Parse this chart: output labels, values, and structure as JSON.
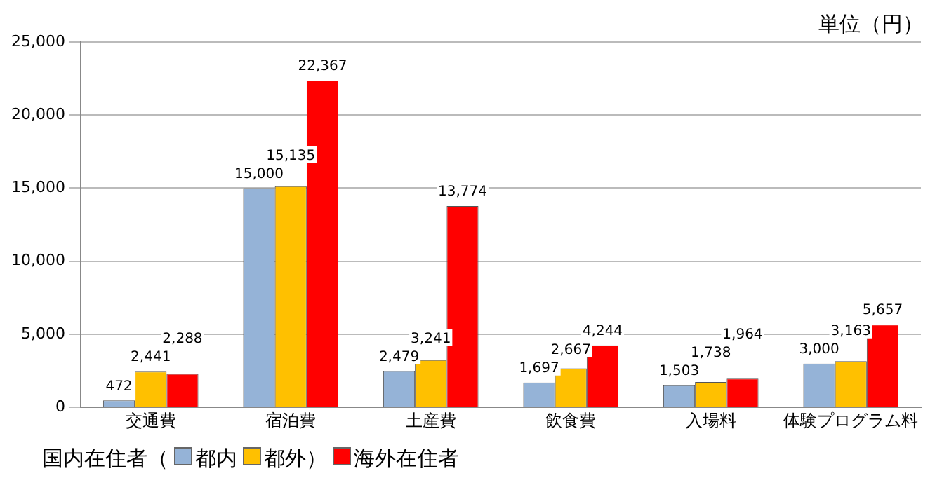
{
  "chart_data": {
    "type": "bar",
    "annotations": [
      "単位（円）"
    ],
    "legend_title": "国内在住者（",
    "categories": [
      "交通費",
      "宿泊費",
      "土産費",
      "飲食費",
      "入場料",
      "体験プログラム料"
    ],
    "series": [
      {
        "name": "都内",
        "color": "#95b3d7",
        "values": [
          472,
          15000,
          2479,
          1697,
          1503,
          3000
        ],
        "value_labels": [
          "472",
          "15,000",
          "2,479",
          "1,697",
          "1,503",
          "3,000"
        ]
      },
      {
        "name": "都外）",
        "color": "#ffc000",
        "values": [
          2441,
          15135,
          3241,
          2667,
          1738,
          3163
        ],
        "value_labels": [
          "2,441",
          "15,135",
          "3,241",
          "2,667",
          "1,738",
          "3,163"
        ]
      },
      {
        "name": "海外在住者",
        "color": "#ff0000",
        "values": [
          2288,
          22367,
          13774,
          4244,
          1964,
          5657
        ],
        "value_labels": [
          "2,288",
          "22,367",
          "13,774",
          "4,244",
          "1,964",
          "5,657"
        ]
      }
    ],
    "ylim": [
      0,
      25000
    ],
    "yticks": [
      {
        "value": 0,
        "label": "0"
      },
      {
        "value": 5000,
        "label": "5,000"
      },
      {
        "value": 10000,
        "label": "10,000"
      },
      {
        "value": 15000,
        "label": "15,000"
      },
      {
        "value": 20000,
        "label": "20,000"
      },
      {
        "value": 25000,
        "label": "25,000"
      }
    ],
    "grid": "y",
    "legend": "bottom left"
  }
}
